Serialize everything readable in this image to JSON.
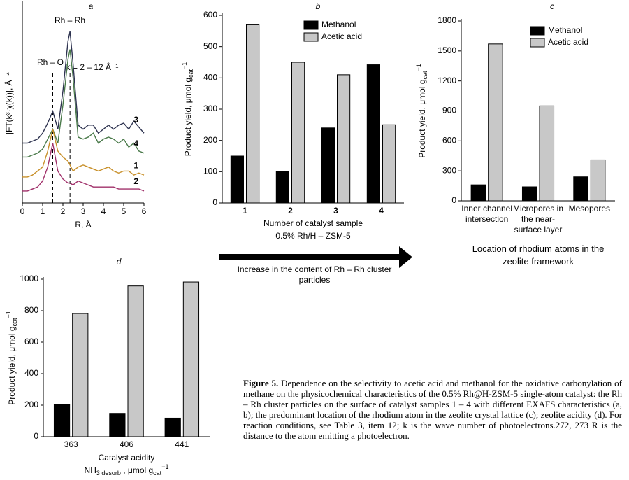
{
  "chart_data": [
    {
      "type": "line",
      "title": "a",
      "xlabel": "R, Å",
      "ylabel": "|FT(k³·χ(k))|, Å⁻⁴",
      "x": [
        0,
        0.25,
        0.5,
        0.75,
        1,
        1.25,
        1.5,
        1.75,
        2,
        2.25,
        2.35,
        2.5,
        2.75,
        3,
        3.25,
        3.5,
        3.75,
        4,
        4.25,
        4.5,
        4.75,
        5,
        5.25,
        5.5,
        5.75,
        6
      ],
      "xlim": [
        0,
        6
      ],
      "xticks": [
        0,
        1,
        2,
        3,
        4,
        5,
        6
      ],
      "ylim": [
        0,
        10
      ],
      "series": [
        {
          "name": "3",
          "color": "#2e3350",
          "values": [
            3.0,
            3.0,
            3.1,
            3.2,
            3.5,
            4.0,
            4.6,
            3.7,
            5.6,
            8.1,
            8.6,
            7.0,
            3.9,
            3.7,
            3.9,
            3.9,
            3.5,
            3.7,
            3.9,
            3.7,
            3.9,
            4.0,
            3.7,
            4.1,
            3.8,
            3.5
          ]
        },
        {
          "name": "4",
          "color": "#4a7a4a",
          "values": [
            2.3,
            2.3,
            2.4,
            2.5,
            2.7,
            3.2,
            3.7,
            3.0,
            4.9,
            7.2,
            7.7,
            6.3,
            3.3,
            3.2,
            3.3,
            3.5,
            3.0,
            3.2,
            3.3,
            3.2,
            3.0,
            3.2,
            2.8,
            3.0,
            2.6,
            2.5
          ]
        },
        {
          "name": "1",
          "color": "#c8902a",
          "values": [
            1.3,
            1.3,
            1.4,
            1.6,
            1.8,
            2.6,
            3.7,
            2.6,
            2.3,
            2.1,
            1.9,
            1.6,
            1.8,
            1.9,
            1.8,
            1.7,
            1.6,
            1.7,
            1.8,
            1.6,
            1.5,
            1.6,
            1.6,
            1.4,
            1.5,
            1.4
          ]
        },
        {
          "name": "2",
          "color": "#a0306a",
          "values": [
            0.6,
            0.6,
            0.7,
            0.8,
            1.1,
            1.8,
            3.0,
            1.6,
            1.2,
            1.0,
            1.0,
            0.9,
            1.1,
            1.0,
            0.9,
            0.8,
            0.8,
            0.8,
            0.8,
            0.8,
            0.7,
            0.7,
            0.7,
            0.7,
            0.7,
            0.6
          ]
        }
      ],
      "annotations": [
        "Rh – Rh",
        "Rh – O",
        "k = 2 – 12 Å⁻¹"
      ],
      "reference_lines": [
        1.5,
        2.35
      ]
    },
    {
      "type": "bar",
      "title": "b",
      "categories": [
        "1",
        "2",
        "3",
        "4"
      ],
      "series": [
        {
          "name": "Methanol",
          "color": "#000000",
          "values": [
            150,
            100,
            240,
            442
          ]
        },
        {
          "name": "Acetic acid",
          "color": "#c8c8c8",
          "values": [
            570,
            450,
            410,
            250
          ]
        }
      ],
      "ylim": [
        0,
        600
      ],
      "yticks": [
        0,
        100,
        200,
        300,
        400,
        500,
        600
      ],
      "legend": true,
      "ylabel": [
        {
          "text": "Product yield, μmol g"
        },
        {
          "text": "cat",
          "sub": true
        },
        {
          "text": "−1",
          "sup": true
        }
      ],
      "xlabel": [
        "Number of catalyst sample",
        "0.5% Rh/H – ZSM-5"
      ]
    },
    {
      "type": "bar",
      "title": "c",
      "categories": [
        "Inner channel intersection",
        "Micropores in the near-surface layer",
        "Mesopores"
      ],
      "series": [
        {
          "name": "Methanol",
          "color": "#000000",
          "values": [
            160,
            140,
            240
          ]
        },
        {
          "name": "Acetic acid",
          "color": "#c8c8c8",
          "values": [
            1570,
            950,
            410
          ]
        }
      ],
      "ylim": [
        0,
        1800
      ],
      "yticks": [
        0,
        300,
        600,
        900,
        1200,
        1500,
        1800
      ],
      "legend": true,
      "ylabel": [
        {
          "text": "Product yield, μmol g"
        },
        {
          "text": "cat",
          "sub": true
        },
        {
          "text": "−1",
          "sup": true
        }
      ],
      "xlabel": [
        "Location of rhodium atoms in the zeolite framework"
      ]
    },
    {
      "type": "bar",
      "title": "d",
      "categories": [
        "363",
        "406",
        "441"
      ],
      "series": [
        {
          "name": "Methanol",
          "color": "#000000",
          "values": [
            205,
            148,
            118
          ]
        },
        {
          "name": "Acetic acid",
          "color": "#c8c8c8",
          "values": [
            782,
            957,
            982
          ]
        }
      ],
      "ylim": [
        0,
        1000
      ],
      "yticks": [
        0,
        200,
        400,
        600,
        800,
        1000
      ],
      "legend": false,
      "ylabel": [
        {
          "text": "Product yield, μmol g"
        },
        {
          "text": "cat",
          "sub": true
        },
        {
          "text": "−1",
          "sup": true
        }
      ],
      "xlabel": [
        "Catalyst acidity",
        [
          {
            "text": "NH"
          },
          {
            "text": "3 desorb",
            "sub": true
          },
          {
            "text": " , μmol g"
          },
          {
            "text": "cat",
            "sub": true
          },
          {
            "text": "−1",
            "sup": true
          }
        ]
      ]
    }
  ],
  "arrow_label": "Increase in the content of Rh – Rh cluster particles",
  "caption": {
    "label": "Figure 5.",
    "text": "Dependence on the selectivity to acetic acid and methanol for the oxidative carbonylation of methane on the physicochemical characteristics of the 0.5% Rh@H-ZSM-5 single-atom catalyst: the Rh – Rh cluster particles on the surface of catalyst samples 1 – 4 with different EXAFS characteristics (a, b); the predominant location of the rhodium atom in the zeolite crystal lattice (c); zeolite acidity (d). For reaction conditions, see Table 3, item 12; k is the wave number of photoelectrons.272, 273 R is the distance to the atom emitting a photoelectron."
  }
}
